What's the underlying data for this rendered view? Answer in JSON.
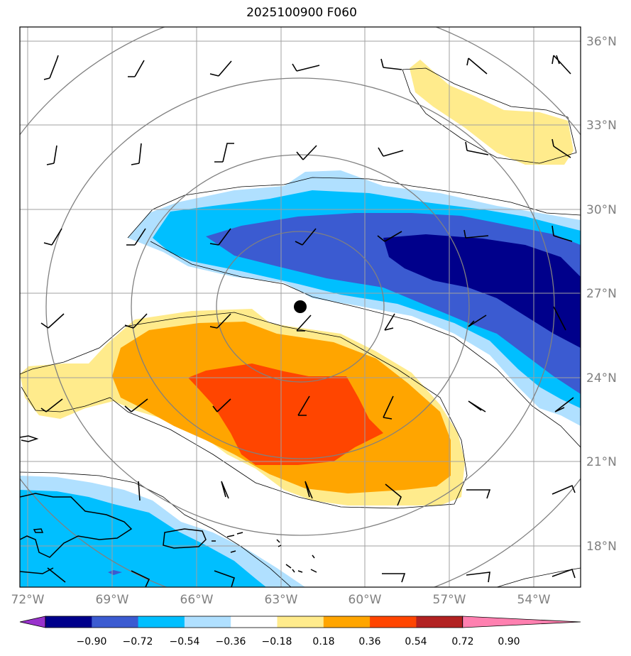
{
  "title": "2025100900 F060",
  "map": {
    "lon_range": [
      -72,
      -52.5
    ],
    "lat_range": [
      16.5,
      36.5
    ],
    "lon_ticks": [
      "72°W",
      "69°W",
      "66°W",
      "63°W",
      "60°W",
      "57°W",
      "54°W"
    ],
    "lat_ticks": [
      "36°N",
      "33°N",
      "30°N",
      "27°N",
      "24°N",
      "21°N",
      "18°N"
    ],
    "storm_center": {
      "lon": -62.3,
      "lat": 26.5
    },
    "range_rings_deg": [
      3,
      6,
      9,
      12
    ],
    "colors": {
      "grid": "#a0a0a0",
      "ring": "#808080",
      "coast": "#000000",
      "tick_label": "#808080"
    }
  },
  "colorbar": {
    "labels": [
      "−0.90",
      "−0.72",
      "−0.54",
      "−0.36",
      "−0.18",
      "0.18",
      "0.36",
      "0.54",
      "0.72",
      "0.90"
    ],
    "colors": [
      "#9932cc",
      "#00008b",
      "#3b5bd1",
      "#00bfff",
      "#b0e0ff",
      "#ffffff",
      "#ffeb8c",
      "#ffa500",
      "#ff4500",
      "#b22222",
      "#ff80b0"
    ],
    "extend": "both"
  }
}
